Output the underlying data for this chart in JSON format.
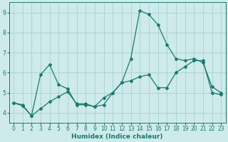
{
  "xlabel": "Humidex (Indice chaleur)",
  "background_color": "#ceeaea",
  "grid_color": "#aed4d4",
  "line_color": "#1a7a6e",
  "xlim": [
    -0.5,
    23.5
  ],
  "ylim": [
    3.5,
    9.5
  ],
  "xticks": [
    0,
    1,
    2,
    3,
    4,
    5,
    6,
    7,
    8,
    9,
    10,
    11,
    12,
    13,
    14,
    15,
    16,
    17,
    18,
    19,
    20,
    21,
    22,
    23
  ],
  "yticks": [
    4,
    5,
    6,
    7,
    8,
    9
  ],
  "line1_x": [
    0,
    1,
    2,
    3,
    4,
    5,
    6,
    7,
    8,
    9,
    10,
    11,
    12,
    13,
    14,
    15,
    16,
    17,
    18,
    19,
    20,
    21,
    22,
    23
  ],
  "line1_y": [
    4.5,
    4.4,
    3.85,
    5.9,
    6.4,
    5.4,
    5.2,
    4.4,
    4.4,
    4.3,
    4.4,
    5.0,
    5.5,
    6.7,
    9.1,
    8.9,
    8.4,
    7.4,
    6.7,
    6.6,
    6.7,
    6.5,
    5.3,
    5.0
  ],
  "line2_x": [
    0,
    1,
    2,
    3,
    4,
    5,
    6,
    7,
    8,
    9,
    10,
    11,
    12,
    13,
    14,
    15,
    16,
    17,
    18,
    19,
    20,
    21,
    22,
    23
  ],
  "line2_y": [
    4.5,
    4.35,
    3.85,
    4.2,
    4.55,
    4.8,
    5.05,
    4.45,
    4.45,
    4.3,
    4.75,
    5.0,
    5.5,
    5.6,
    5.8,
    5.9,
    5.25,
    5.25,
    6.0,
    6.3,
    6.6,
    6.6,
    5.0,
    4.9
  ]
}
